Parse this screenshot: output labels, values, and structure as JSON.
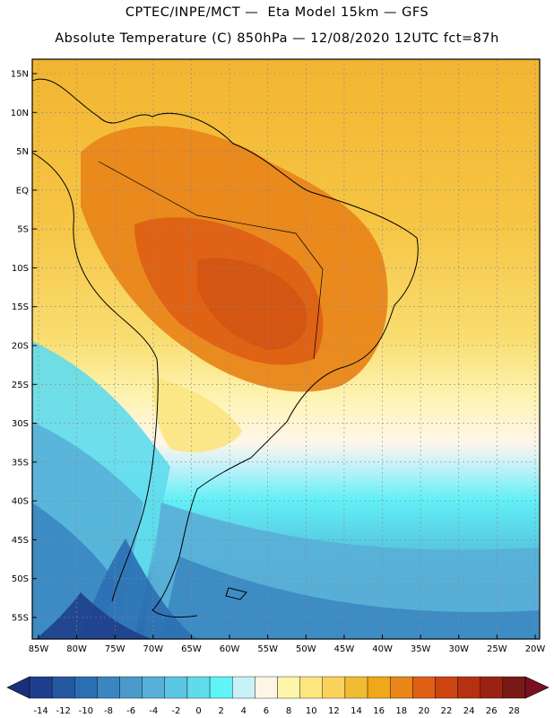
{
  "header": {
    "line1": "CPTEC/INPE/MCT —  Eta Model 15km — GFS",
    "line2": "Absolute Temperature (C) 850hPa — 12/08/2020 12UTC fct=87h"
  },
  "map": {
    "lon_labels": [
      "85W",
      "80W",
      "75W",
      "70W",
      "65W",
      "60W",
      "55W",
      "50W",
      "45W",
      "40W",
      "35W",
      "30W",
      "25W",
      "20W"
    ],
    "lat_labels": [
      "15N",
      "10N",
      "5N",
      "EQ",
      "5S",
      "10S",
      "15S",
      "20S",
      "25S",
      "30S",
      "35S",
      "40S",
      "45S",
      "50S",
      "55S"
    ],
    "lon_range": [
      -85,
      -20
    ],
    "lat_range": [
      -57,
      15
    ]
  },
  "colorbar": {
    "ticks": [
      "-14",
      "-12",
      "-10",
      "-8",
      "-6",
      "-4",
      "-2",
      "0",
      "2",
      "4",
      "6",
      "8",
      "10",
      "12",
      "14",
      "16",
      "18",
      "20",
      "22",
      "24",
      "26",
      "28"
    ],
    "colors": [
      "#1f3f8c",
      "#2459a1",
      "#2b6fb2",
      "#3a86c1",
      "#4a9bcc",
      "#58b0d8",
      "#5bc6e2",
      "#5fdcec",
      "#60f4f8",
      "#c9f2f8",
      "#fff5e6",
      "#fdf6a8",
      "#fbe680",
      "#f8d25a",
      "#f2bb34",
      "#f0a81a",
      "#e9861a",
      "#df6014",
      "#cc4412",
      "#b53110",
      "#9a2212",
      "#7a1a16"
    ],
    "under_color": "#1c2f7c",
    "over_color": "#7a0f22"
  }
}
